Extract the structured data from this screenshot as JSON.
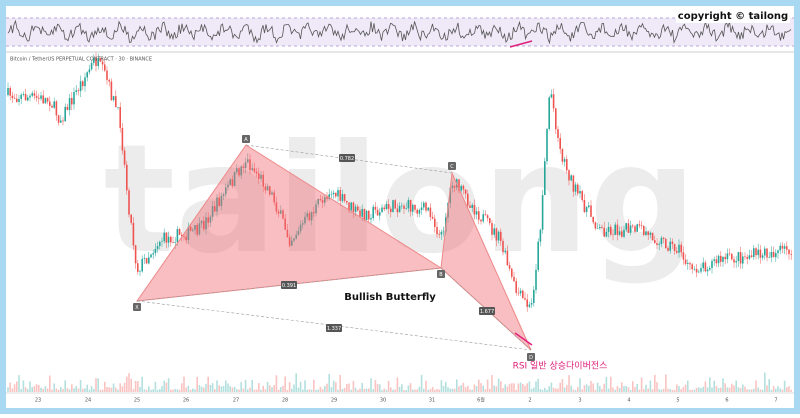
{
  "header": {
    "copyright": "copyright © tailong",
    "symbol": "Bitcoin / TetherUS PERPETUAL CONTRACT · 30 · BINANCE"
  },
  "watermark": "tailong",
  "pattern": {
    "name": "Bullish Butterfly",
    "points": [
      "X",
      "A",
      "B",
      "C",
      "D"
    ],
    "ratios": [
      "0.782",
      "0.391",
      "1.337",
      "1.677"
    ]
  },
  "annotation": "RSI 일반 상승다이버전스",
  "x_axis": [
    "23",
    "24",
    "25",
    "26",
    "27",
    "28",
    "29",
    "30",
    "31",
    "6월",
    "2",
    "3",
    "4",
    "5",
    "6",
    "7"
  ]
}
